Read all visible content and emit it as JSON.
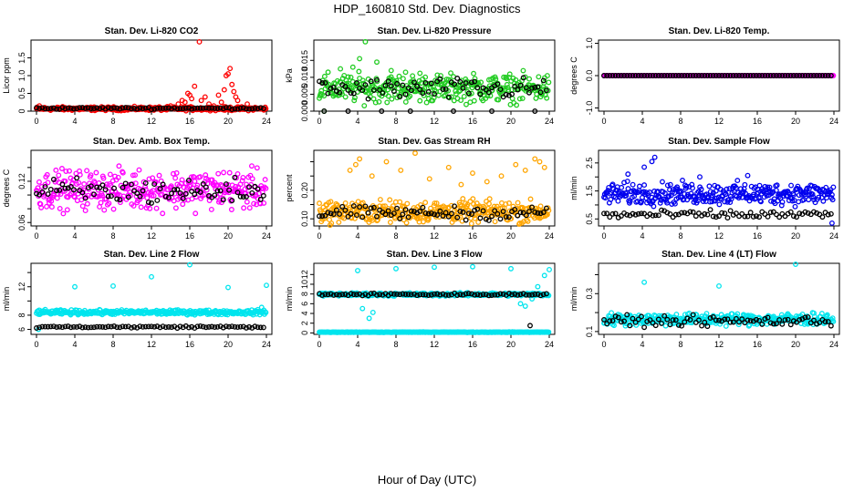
{
  "figure": {
    "title": "HDP_160810  Std. Dev. Diagnostics",
    "xlabel": "Hour of Day (UTC)"
  },
  "chart_data": [
    {
      "type": "scatter",
      "title": "Stan. Dev. Li-820 CO2",
      "ylabel": "Licor ppm",
      "xlim": [
        0,
        24
      ],
      "ylim": [
        0,
        2.0
      ],
      "xticks": [
        0,
        4,
        8,
        12,
        16,
        20,
        24
      ],
      "yticks": [
        0,
        0.5,
        1.0,
        1.5
      ],
      "ytick_labels": [
        "0",
        "0.5",
        "1.0",
        "1.5"
      ],
      "series": [
        {
          "color": "#ff0000",
          "base": 0.07,
          "noise": 0.04,
          "x": [
            0.3,
            12.8,
            14.0,
            14.8,
            15.2,
            15.5,
            15.8,
            16.0,
            16.2,
            16.5,
            17.0,
            17.2,
            17.6,
            18.0,
            18.5,
            19.0,
            19.3,
            19.6,
            19.8,
            20.0,
            20.2,
            20.4,
            20.6,
            20.8,
            21.0,
            22.0
          ],
          "y": [
            0.15,
            0.12,
            0.15,
            0.2,
            0.3,
            0.25,
            0.5,
            0.45,
            0.35,
            0.7,
            1.95,
            0.3,
            0.4,
            0.2,
            0.15,
            0.45,
            0.25,
            0.6,
            1.0,
            1.05,
            1.2,
            0.75,
            0.55,
            0.4,
            0.3,
            0.2
          ]
        },
        {
          "color": "#000000",
          "base": 0.08,
          "noise": 0.02,
          "x": [],
          "y": []
        }
      ]
    },
    {
      "type": "scatter",
      "title": "Stan. Dev. Li-820 Pressure",
      "ylabel": "kPa",
      "xlim": [
        0,
        24
      ],
      "ylim": [
        0,
        0.021
      ],
      "xticks": [
        0,
        4,
        8,
        12,
        16,
        20,
        24
      ],
      "yticks": [
        0.0,
        0.005,
        0.01,
        0.015
      ],
      "ytick_labels": [
        "0.000",
        "0.005",
        "0.010",
        "0.015"
      ],
      "series": [
        {
          "color": "#22cc22",
          "base": 0.0068,
          "noise": 0.0032,
          "x": [
            0.5,
            2.2,
            3.5,
            4.2,
            4.8,
            6.0,
            7.5,
            9.0,
            10.5
          ],
          "y": [
            0.0,
            0.0125,
            0.013,
            0.0155,
            0.0205,
            0.0145,
            0.012,
            0.0115,
            0.0112
          ]
        },
        {
          "color": "#000000",
          "base": 0.0065,
          "noise": 0.0025,
          "x": [
            0.5,
            3.0,
            6.5,
            9.5,
            14.0,
            18.0,
            22.5
          ],
          "y": [
            0.0,
            0.0,
            0.0,
            0.0,
            0.0,
            0.0,
            0.0
          ]
        }
      ]
    },
    {
      "type": "scatter",
      "title": "Stan. Dev. Li-820 Temp.",
      "ylabel": "degrees C",
      "xlim": [
        0,
        24
      ],
      "ylim": [
        -1.1,
        1.1
      ],
      "xticks": [
        0,
        4,
        8,
        12,
        16,
        20,
        24
      ],
      "yticks": [
        -1.0,
        0.0,
        1.0
      ],
      "ytick_labels": [
        "-1.0",
        "0.0",
        "1.0"
      ],
      "series": [
        {
          "color": "#ff00ff",
          "base": 0.0,
          "noise": 0.0,
          "x": [],
          "y": []
        },
        {
          "color": "#000000",
          "base": 0.0,
          "noise": 0.0,
          "x": [],
          "y": []
        }
      ]
    },
    {
      "type": "scatter",
      "title": "Stan. Dev. Amb. Box Temp.",
      "ylabel": "degrees C",
      "xlim": [
        0,
        24
      ],
      "ylim": [
        0.055,
        0.165
      ],
      "xticks": [
        0,
        4,
        8,
        12,
        16,
        20,
        24
      ],
      "yticks": [
        0.06,
        0.08,
        0.1,
        0.12,
        0.14
      ],
      "ytick_labels": [
        "0.06",
        "",
        "",
        "0.12",
        ""
      ],
      "series": [
        {
          "color": "#ff00ff",
          "base": 0.108,
          "noise": 0.022,
          "x": [],
          "y": []
        },
        {
          "color": "#000000",
          "base": 0.105,
          "noise": 0.015,
          "x": [],
          "y": []
        }
      ]
    },
    {
      "type": "scatter",
      "title": "Stan. Dev. Gas Stream RH",
      "ylabel": "percent",
      "xlim": [
        0,
        24
      ],
      "ylim": [
        0.075,
        0.34
      ],
      "xticks": [
        0,
        4,
        8,
        12,
        16,
        20,
        24
      ],
      "yticks": [
        0.1,
        0.15,
        0.2,
        0.25,
        0.3
      ],
      "ytick_labels": [
        "0.10",
        "",
        "0.20",
        "",
        ""
      ],
      "series": [
        {
          "color": "#ffa500",
          "base": 0.125,
          "noise": 0.03,
          "x": [
            3.2,
            3.8,
            4.2,
            5.5,
            7.0,
            8.5,
            10.0,
            11.5,
            13.5,
            14.8,
            16.0,
            17.5,
            19.0,
            20.5,
            21.5,
            22.5,
            23.0,
            23.5
          ],
          "y": [
            0.27,
            0.29,
            0.31,
            0.25,
            0.3,
            0.27,
            0.33,
            0.24,
            0.28,
            0.22,
            0.26,
            0.23,
            0.25,
            0.29,
            0.27,
            0.31,
            0.3,
            0.28
          ]
        },
        {
          "color": "#000000",
          "base": 0.12,
          "noise": 0.018,
          "x": [],
          "y": []
        }
      ]
    },
    {
      "type": "scatter",
      "title": "Stan. Dev. Sample Flow",
      "ylabel": "ml/min",
      "xlim": [
        0,
        24
      ],
      "ylim": [
        0.25,
        2.95
      ],
      "xticks": [
        0,
        4,
        8,
        12,
        16,
        20,
        24
      ],
      "yticks": [
        0.5,
        1.0,
        1.5,
        2.0,
        2.5
      ],
      "ytick_labels": [
        "0.5",
        "",
        "1.5",
        "",
        "2.5"
      ],
      "series": [
        {
          "color": "#0000ee",
          "base": 1.4,
          "noise": 0.3,
          "x": [
            2.5,
            4.2,
            5.0,
            5.3,
            10.0,
            15.0,
            23.8
          ],
          "y": [
            2.1,
            2.35,
            2.55,
            2.7,
            2.0,
            2.05,
            0.35
          ]
        },
        {
          "color": "#000000",
          "base": 0.65,
          "noise": 0.12,
          "x": [],
          "y": []
        }
      ]
    },
    {
      "type": "scatter",
      "title": "Stan. Dev. Line 2 Flow",
      "ylabel": "ml/min",
      "xlim": [
        0,
        24
      ],
      "ylim": [
        5.3,
        15.3
      ],
      "xticks": [
        0,
        4,
        8,
        12,
        16,
        20,
        24
      ],
      "yticks": [
        6,
        8,
        10,
        12,
        14
      ],
      "ytick_labels": [
        "6",
        "8",
        "",
        "12",
        ""
      ],
      "series": [
        {
          "color": "#00e5ee",
          "base": 8.4,
          "noise": 0.25,
          "x": [
            4.0,
            8.0,
            12.0,
            16.0,
            20.0,
            23.5,
            24.0,
            0.2
          ],
          "y": [
            12.0,
            12.1,
            13.4,
            15.1,
            11.9,
            9.1,
            12.2,
            6.0
          ]
        },
        {
          "color": "#000000",
          "base": 6.35,
          "noise": 0.12,
          "x": [],
          "y": []
        }
      ]
    },
    {
      "type": "scatter",
      "title": "Stan. Dev. Line 3 Flow",
      "ylabel": "ml/min",
      "xlim": [
        0,
        24
      ],
      "ylim": [
        -0.3,
        14.3
      ],
      "xticks": [
        0,
        4,
        8,
        12,
        16,
        20,
        24
      ],
      "yticks": [
        0,
        2,
        4,
        6,
        8,
        10,
        12
      ],
      "ytick_labels": [
        "0",
        "2",
        "4",
        "6",
        "8",
        "10",
        "12"
      ],
      "series": [
        {
          "color": "#00e5ee",
          "base": 7.9,
          "noise": 0.25,
          "x": [
            4.0,
            8.0,
            12.0,
            16.0,
            20.0,
            24.0,
            4.5,
            5.2,
            5.6,
            21.0,
            21.5,
            22.2,
            22.8,
            23.5
          ],
          "y": [
            12.8,
            13.2,
            13.5,
            13.6,
            13.2,
            13.0,
            5.0,
            3.0,
            4.2,
            6.0,
            5.5,
            7.0,
            9.5,
            11.8
          ]
        },
        {
          "color": "#00e5ee",
          "base": 0.15,
          "noise": 0.04,
          "x": [],
          "y": []
        },
        {
          "color": "#000000",
          "base": 7.9,
          "noise": 0.2,
          "x": [
            22.0
          ],
          "y": [
            1.5
          ]
        }
      ]
    },
    {
      "type": "scatter",
      "title": "Stan. Dev. Line 4 (LT) Flow",
      "ylabel": "ml/min",
      "xlim": [
        0,
        24
      ],
      "ylim": [
        0.085,
        0.46
      ],
      "xticks": [
        0,
        4,
        8,
        12,
        16,
        20,
        24
      ],
      "yticks": [
        0.1,
        0.2,
        0.3,
        0.4
      ],
      "ytick_labels": [
        "0.1",
        "",
        "0.3",
        ""
      ],
      "series": [
        {
          "color": "#00e5ee",
          "base": 0.165,
          "noise": 0.025,
          "x": [
            4.2,
            12.0,
            20.0
          ],
          "y": [
            0.36,
            0.34,
            0.455
          ]
        },
        {
          "color": "#000000",
          "base": 0.155,
          "noise": 0.02,
          "x": [],
          "y": []
        }
      ]
    }
  ]
}
